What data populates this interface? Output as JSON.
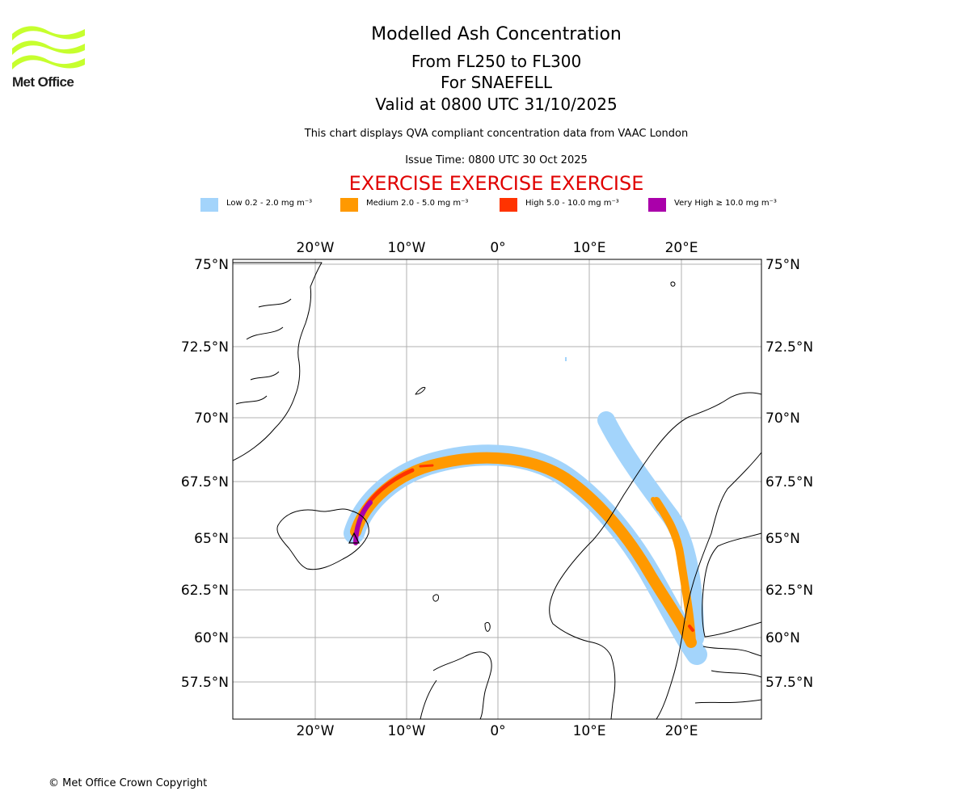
{
  "logo": {
    "text": "Met Office",
    "color": "#c6ff2e"
  },
  "header": {
    "title": "Modelled Ash Concentration",
    "levels": "From FL250 to FL300",
    "volcano": "For SNAEFELL",
    "valid": "Valid at 0800 UTC 31/10/2025",
    "description": "This chart displays QVA compliant concentration data from VAAC London",
    "issue": "Issue Time: 0800 UTC 30 Oct 2025",
    "exercise": "EXERCISE EXERCISE EXERCISE",
    "exercise_color": "#e00000"
  },
  "legend": [
    {
      "label": "Low 0.2 - 2.0 mg m⁻³",
      "color": "#a3d4fb"
    },
    {
      "label": "Medium 2.0 - 5.0 mg m⁻³",
      "color": "#ff9900"
    },
    {
      "label": "High 5.0 - 10.0 mg m⁻³",
      "color": "#ff3300"
    },
    {
      "label": "Very High ≥ 10.0 mg m⁻³",
      "color": "#aa00aa"
    }
  ],
  "map": {
    "lon_labels": [
      "20°W",
      "10°W",
      "0°",
      "10°E",
      "20°E"
    ],
    "lat_labels": [
      "75°N",
      "72.5°N",
      "70°N",
      "67.5°N",
      "65°N",
      "62.5°N",
      "60°N",
      "57.5°N"
    ],
    "grid": true
  },
  "footer": {
    "copyright": "© Met Office Crown Copyright"
  }
}
